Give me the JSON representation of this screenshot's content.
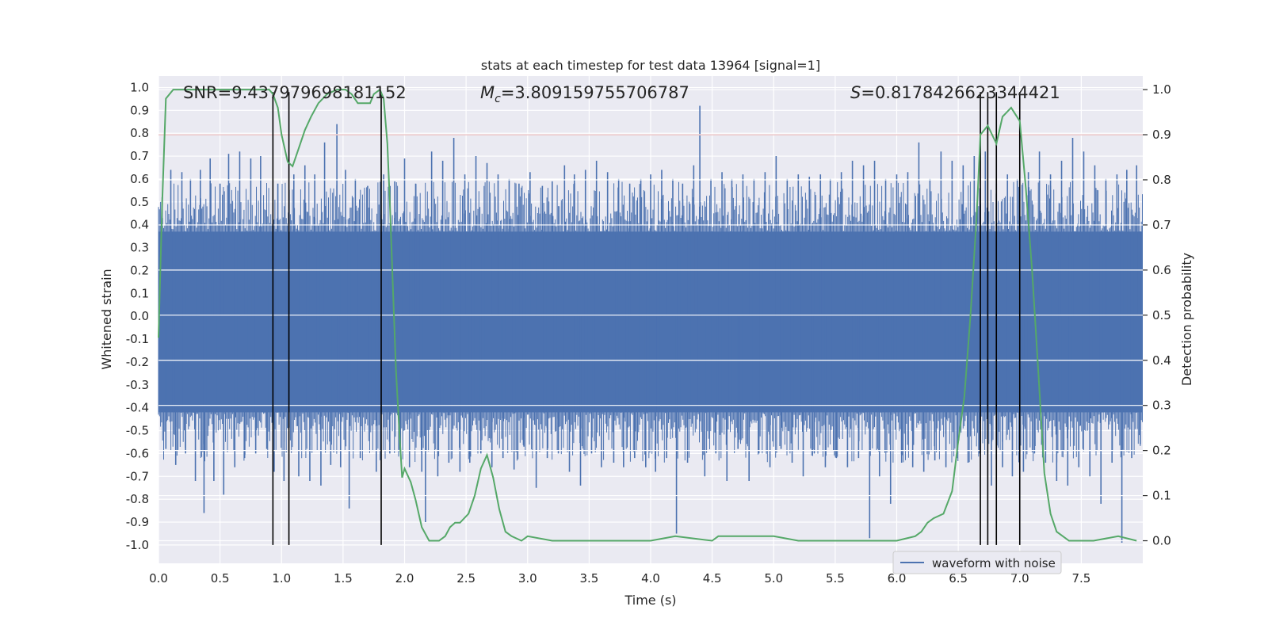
{
  "chart_data": {
    "type": "line",
    "title": "stats at each timestep for test data 13964 [signal=1]",
    "xlabel": "Time (s)",
    "ylabel_left": "Whitened strain",
    "ylabel_right": "Detection probability",
    "xlim": [
      0.0,
      8.0
    ],
    "ylim_left": [
      -1.08,
      1.05
    ],
    "ylim_right": [
      -0.05,
      1.03
    ],
    "x_ticks": [
      "0.0",
      "0.5",
      "1.0",
      "1.5",
      "2.0",
      "2.5",
      "3.0",
      "3.5",
      "4.0",
      "4.5",
      "5.0",
      "5.5",
      "6.0",
      "6.5",
      "7.0",
      "7.5"
    ],
    "x_tick_values": [
      0.0,
      0.5,
      1.0,
      1.5,
      2.0,
      2.5,
      3.0,
      3.5,
      4.0,
      4.5,
      5.0,
      5.5,
      6.0,
      6.5,
      7.0,
      7.5
    ],
    "y_left_ticks": [
      "1.0",
      "0.9",
      "0.8",
      "0.7",
      "0.6",
      "0.5",
      "0.4",
      "0.3",
      "0.2",
      "0.1",
      "0.0",
      "-0.1",
      "-0.2",
      "-0.3",
      "-0.4",
      "-0.5",
      "-0.6",
      "-0.7",
      "-0.8",
      "-0.9",
      "-1.0"
    ],
    "y_left_tick_values": [
      1.0,
      0.9,
      0.8,
      0.7,
      0.6,
      0.5,
      0.4,
      0.3,
      0.2,
      0.1,
      0.0,
      -0.1,
      -0.2,
      -0.3,
      -0.4,
      -0.5,
      -0.6,
      -0.7,
      -0.8,
      -0.9,
      -1.0
    ],
    "y_right_ticks": [
      "1.0",
      "0.9",
      "0.8",
      "0.7",
      "0.6",
      "0.5",
      "0.4",
      "0.3",
      "0.2",
      "0.1",
      "0.0"
    ],
    "y_right_tick_values": [
      1.0,
      0.9,
      0.8,
      0.7,
      0.6,
      0.5,
      0.4,
      0.3,
      0.2,
      0.1,
      0.0
    ],
    "annotations": {
      "snr": "SNR=9.437979698181152",
      "mc_symbol": "M",
      "mc_sub": "c",
      "mc_value": "=3.809159755706787",
      "s_symbol": "S",
      "s_value": "=0.8178426623344421"
    },
    "threshold": {
      "value": 0.9,
      "axis": "right",
      "color": "#c44e52"
    },
    "vertical_lines": [
      0.93,
      1.06,
      1.81,
      6.68,
      6.74,
      6.81,
      7.0
    ],
    "waveform": {
      "name": "waveform with noise",
      "color": "#4c72b0",
      "dense_band": [
        -0.42,
        0.37
      ],
      "spikes": [
        [
          0.03,
          0.52
        ],
        [
          0.06,
          -0.58
        ],
        [
          0.1,
          0.64
        ],
        [
          0.14,
          -0.65
        ],
        [
          0.19,
          0.63
        ],
        [
          0.22,
          -0.6
        ],
        [
          0.26,
          0.6
        ],
        [
          0.3,
          -0.72
        ],
        [
          0.34,
          0.64
        ],
        [
          0.37,
          -0.86
        ],
        [
          0.42,
          0.69
        ],
        [
          0.45,
          -0.72
        ],
        [
          0.5,
          0.58
        ],
        [
          0.53,
          -0.78
        ],
        [
          0.57,
          0.71
        ],
        [
          0.62,
          -0.66
        ],
        [
          0.66,
          0.72
        ],
        [
          0.7,
          -0.62
        ],
        [
          0.75,
          0.69
        ],
        [
          0.79,
          -0.6
        ],
        [
          0.83,
          0.7
        ],
        [
          0.88,
          -0.58
        ],
        [
          0.94,
          -0.68
        ],
        [
          0.97,
          0.58
        ],
        [
          1.02,
          -0.72
        ],
        [
          1.1,
          0.62
        ],
        [
          1.14,
          -0.7
        ],
        [
          1.19,
          0.66
        ],
        [
          1.23,
          -0.72
        ],
        [
          1.27,
          0.62
        ],
        [
          1.32,
          -0.74
        ],
        [
          1.35,
          0.76
        ],
        [
          1.4,
          -0.65
        ],
        [
          1.45,
          0.84
        ],
        [
          1.48,
          -0.66
        ],
        [
          1.52,
          0.64
        ],
        [
          1.55,
          -0.84
        ],
        [
          1.6,
          0.6
        ],
        [
          1.64,
          -0.62
        ],
        [
          1.7,
          0.57
        ],
        [
          1.77,
          -0.68
        ],
        [
          1.83,
          0.62
        ],
        [
          1.88,
          -0.6
        ],
        [
          1.92,
          0.59
        ],
        [
          1.96,
          -0.58
        ],
        [
          2.0,
          0.69
        ],
        [
          2.04,
          -0.66
        ],
        [
          2.09,
          0.58
        ],
        [
          2.14,
          -0.68
        ],
        [
          2.17,
          -0.9
        ],
        [
          2.22,
          0.72
        ],
        [
          2.27,
          -0.7
        ],
        [
          2.31,
          0.68
        ],
        [
          2.36,
          -0.64
        ],
        [
          2.4,
          0.78
        ],
        [
          2.45,
          -0.68
        ],
        [
          2.49,
          0.62
        ],
        [
          2.53,
          -0.64
        ],
        [
          2.58,
          0.7
        ],
        [
          2.62,
          -0.6
        ],
        [
          2.67,
          0.67
        ],
        [
          2.71,
          -0.66
        ],
        [
          2.76,
          0.62
        ],
        [
          2.8,
          -0.62
        ],
        [
          2.85,
          0.6
        ],
        [
          2.89,
          -0.67
        ],
        [
          2.93,
          0.58
        ],
        [
          2.97,
          -0.57
        ],
        [
          3.02,
          0.63
        ],
        [
          3.07,
          -0.75
        ],
        [
          3.12,
          0.57
        ],
        [
          3.16,
          -0.62
        ],
        [
          3.2,
          0.59
        ],
        [
          3.25,
          -0.6
        ],
        [
          3.3,
          0.66
        ],
        [
          3.34,
          -0.68
        ],
        [
          3.38,
          0.62
        ],
        [
          3.43,
          -0.74
        ],
        [
          3.47,
          0.64
        ],
        [
          3.52,
          -0.6
        ],
        [
          3.56,
          0.68
        ],
        [
          3.6,
          -0.66
        ],
        [
          3.65,
          0.63
        ],
        [
          3.7,
          -0.64
        ],
        [
          3.74,
          0.6
        ],
        [
          3.78,
          -0.66
        ],
        [
          3.83,
          0.58
        ],
        [
          3.87,
          -0.62
        ],
        [
          3.92,
          0.6
        ],
        [
          3.96,
          -0.66
        ],
        [
          4.0,
          0.62
        ],
        [
          4.04,
          -0.68
        ],
        [
          4.09,
          0.64
        ],
        [
          4.13,
          -0.62
        ],
        [
          4.18,
          0.6
        ],
        [
          4.21,
          -0.95
        ],
        [
          4.26,
          0.58
        ],
        [
          4.3,
          -0.64
        ],
        [
          4.35,
          0.66
        ],
        [
          4.4,
          0.92
        ],
        [
          4.44,
          -0.7
        ],
        [
          4.49,
          0.6
        ],
        [
          4.53,
          -0.6
        ],
        [
          4.58,
          0.63
        ],
        [
          4.62,
          -0.72
        ],
        [
          4.66,
          0.6
        ],
        [
          4.71,
          -0.58
        ],
        [
          4.75,
          0.62
        ],
        [
          4.8,
          -0.72
        ],
        [
          4.84,
          0.6
        ],
        [
          4.88,
          -0.6
        ],
        [
          4.93,
          0.63
        ],
        [
          4.97,
          -0.66
        ],
        [
          5.02,
          0.7
        ],
        [
          5.06,
          -0.58
        ],
        [
          5.11,
          0.6
        ],
        [
          5.15,
          -0.64
        ],
        [
          5.2,
          0.62
        ],
        [
          5.24,
          -0.7
        ],
        [
          5.29,
          0.61
        ],
        [
          5.33,
          -0.6
        ],
        [
          5.38,
          0.62
        ],
        [
          5.42,
          -0.66
        ],
        [
          5.46,
          0.6
        ],
        [
          5.51,
          -0.62
        ],
        [
          5.55,
          0.63
        ],
        [
          5.6,
          -0.66
        ],
        [
          5.64,
          0.68
        ],
        [
          5.69,
          -0.62
        ],
        [
          5.73,
          0.66
        ],
        [
          5.78,
          -0.97
        ],
        [
          5.82,
          0.68
        ],
        [
          5.86,
          -0.7
        ],
        [
          5.91,
          0.6
        ],
        [
          5.95,
          -0.82
        ],
        [
          6.0,
          0.62
        ],
        [
          6.04,
          -0.64
        ],
        [
          6.09,
          0.63
        ],
        [
          6.13,
          -0.66
        ],
        [
          6.18,
          0.76
        ],
        [
          6.22,
          -0.68
        ],
        [
          6.27,
          0.6
        ],
        [
          6.31,
          -0.63
        ],
        [
          6.36,
          0.72
        ],
        [
          6.4,
          -0.66
        ],
        [
          6.45,
          0.68
        ],
        [
          6.49,
          -0.62
        ],
        [
          6.54,
          0.66
        ],
        [
          6.58,
          -0.64
        ],
        [
          6.63,
          0.7
        ],
        [
          6.67,
          -0.6
        ],
        [
          6.72,
          0.72
        ],
        [
          6.77,
          -0.74
        ],
        [
          6.81,
          0.58
        ],
        [
          6.86,
          -0.66
        ],
        [
          6.9,
          0.62
        ],
        [
          6.94,
          -0.7
        ],
        [
          6.98,
          0.6
        ],
        [
          7.03,
          -0.68
        ],
        [
          7.07,
          0.63
        ],
        [
          7.12,
          -0.6
        ],
        [
          7.16,
          0.72
        ],
        [
          7.21,
          -0.64
        ],
        [
          7.25,
          0.62
        ],
        [
          7.3,
          -0.72
        ],
        [
          7.34,
          0.68
        ],
        [
          7.39,
          -0.74
        ],
        [
          7.43,
          0.78
        ],
        [
          7.48,
          -0.66
        ],
        [
          7.52,
          0.72
        ],
        [
          7.57,
          -0.7
        ],
        [
          7.61,
          0.66
        ],
        [
          7.66,
          -0.82
        ],
        [
          7.7,
          0.6
        ],
        [
          7.75,
          -0.64
        ],
        [
          7.79,
          0.62
        ],
        [
          7.83,
          -0.99
        ],
        [
          7.87,
          0.64
        ],
        [
          7.91,
          -0.62
        ],
        [
          7.95,
          0.66
        ],
        [
          7.98,
          -0.56
        ]
      ]
    },
    "probability": {
      "name": "detection probability",
      "color": "#55a868",
      "x": [
        0.0,
        0.03,
        0.06,
        0.12,
        0.5,
        0.9,
        0.93,
        0.97,
        1.0,
        1.05,
        1.09,
        1.14,
        1.19,
        1.24,
        1.3,
        1.37,
        1.45,
        1.52,
        1.57,
        1.62,
        1.67,
        1.72,
        1.75,
        1.8,
        1.83,
        1.86,
        1.88,
        1.9,
        1.93,
        1.96,
        1.98,
        2.0,
        2.05,
        2.09,
        2.14,
        2.2,
        2.28,
        2.33,
        2.37,
        2.41,
        2.45,
        2.52,
        2.57,
        2.62,
        2.67,
        2.72,
        2.77,
        2.82,
        2.87,
        2.95,
        3.0,
        3.2,
        3.5,
        4.0,
        4.2,
        4.5,
        4.55,
        4.6,
        4.7,
        4.8,
        4.9,
        5.0,
        5.2,
        5.4,
        5.6,
        5.8,
        6.0,
        6.15,
        6.2,
        6.25,
        6.3,
        6.38,
        6.45,
        6.5,
        6.55,
        6.6,
        6.65,
        6.68,
        6.74,
        6.81,
        6.86,
        6.93,
        7.0,
        7.05,
        7.1,
        7.15,
        7.2,
        7.25,
        7.3,
        7.35,
        7.4,
        7.6,
        7.8,
        7.95
      ],
      "y": [
        0.45,
        0.75,
        0.98,
        1.0,
        1.0,
        1.0,
        0.99,
        0.96,
        0.9,
        0.84,
        0.83,
        0.87,
        0.91,
        0.94,
        0.97,
        0.99,
        1.0,
        1.0,
        0.99,
        0.97,
        0.97,
        0.97,
        0.99,
        1.0,
        0.98,
        0.88,
        0.75,
        0.6,
        0.38,
        0.23,
        0.14,
        0.16,
        0.13,
        0.09,
        0.03,
        0.0,
        0.0,
        0.01,
        0.03,
        0.04,
        0.04,
        0.06,
        0.1,
        0.16,
        0.19,
        0.14,
        0.07,
        0.02,
        0.01,
        0.0,
        0.01,
        0.0,
        0.0,
        0.0,
        0.01,
        0.0,
        0.01,
        0.01,
        0.01,
        0.01,
        0.01,
        0.01,
        0.0,
        0.0,
        0.0,
        0.0,
        0.0,
        0.01,
        0.02,
        0.04,
        0.05,
        0.06,
        0.11,
        0.22,
        0.32,
        0.5,
        0.72,
        0.9,
        0.92,
        0.88,
        0.94,
        0.96,
        0.93,
        0.78,
        0.6,
        0.38,
        0.15,
        0.06,
        0.02,
        0.01,
        0.0,
        0.0,
        0.01,
        0.0
      ]
    },
    "legend": {
      "label": "waveform with noise",
      "position": "lower-right"
    }
  }
}
